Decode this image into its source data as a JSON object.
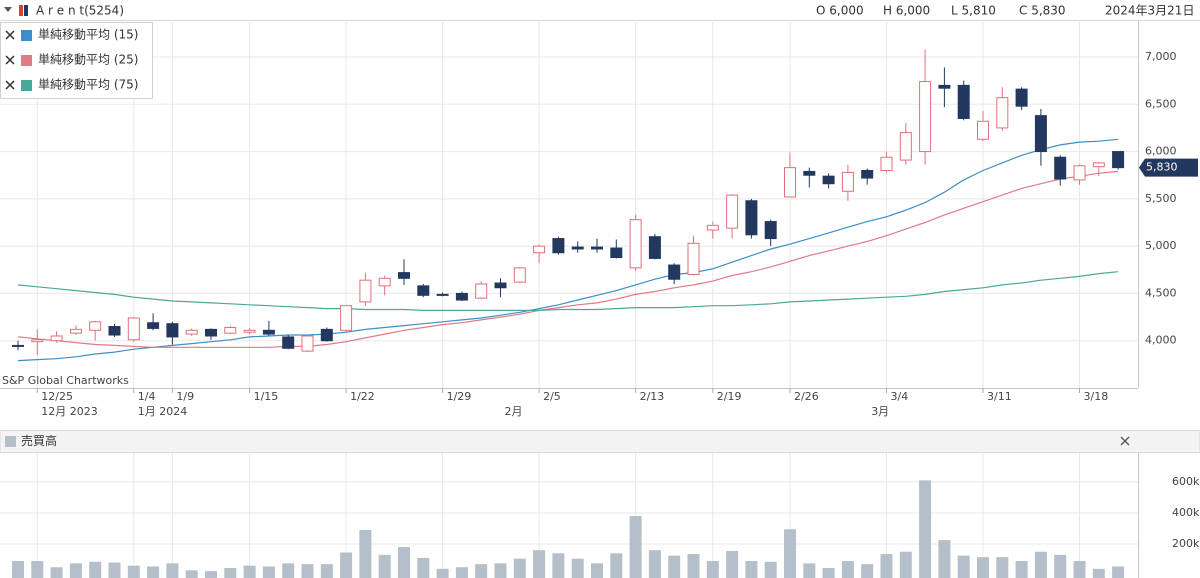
{
  "chart_data": [
    {
      "type": "candlestick",
      "title": "A r e n t(5254)",
      "ohlc_labels": [
        "O 6,000",
        "H 6,000",
        "L 5,810",
        "C 5,830"
      ],
      "date": "2024年3月21日",
      "credit": "S&P Global Chartworks",
      "last_label": "5,830",
      "categories": [
        null,
        "12/25",
        null,
        null,
        null,
        null,
        "1/4",
        null,
        "1/9",
        null,
        null,
        null,
        "1/15",
        null,
        null,
        null,
        null,
        "1/22",
        null,
        null,
        null,
        null,
        "1/29",
        null,
        null,
        null,
        null,
        "2/5",
        null,
        null,
        null,
        null,
        "2/13",
        null,
        null,
        null,
        "2/19",
        null,
        null,
        null,
        "2/26",
        null,
        null,
        null,
        null,
        "3/4",
        null,
        null,
        null,
        null,
        "3/11",
        null,
        null,
        null,
        null,
        "3/18",
        null,
        null
      ],
      "month_labels": [
        {
          "index": 1,
          "label": "12月 2023"
        },
        {
          "index": 6,
          "label": "1月 2024"
        },
        {
          "index": 25,
          "label": "2月"
        },
        {
          "index": 44,
          "label": "3月"
        }
      ],
      "open": [
        3950,
        3990,
        4000,
        4080,
        4110,
        4150,
        4010,
        4190,
        4180,
        4070,
        4120,
        4080,
        4090,
        4110,
        4040,
        3890,
        4120,
        4110,
        4410,
        4580,
        4720,
        4580,
        4490,
        4500,
        4450,
        4610,
        4620,
        4930,
        5080,
        4990,
        4990,
        4980,
        4770,
        5100,
        4800,
        4700,
        5170,
        5190,
        5480,
        5260,
        5520,
        5790,
        5740,
        5580,
        5800,
        5800,
        5910,
        6000,
        6700,
        6700,
        6130,
        6250,
        6660,
        6380,
        5940,
        5700,
        5840,
        6000
      ],
      "high": [
        4000,
        4120,
        4100,
        4160,
        4210,
        4180,
        4250,
        4290,
        4200,
        4130,
        4130,
        4160,
        4130,
        4210,
        4060,
        4060,
        4140,
        4380,
        4720,
        4690,
        4860,
        4600,
        4510,
        4520,
        4630,
        4660,
        4780,
        5020,
        5100,
        5050,
        5080,
        5070,
        5330,
        5130,
        4820,
        5110,
        5260,
        5550,
        5500,
        5280,
        5990,
        5830,
        5770,
        5860,
        5820,
        6000,
        6300,
        7080,
        6890,
        6750,
        6430,
        6680,
        6680,
        6450,
        5960,
        5860,
        5890,
        6000
      ],
      "low": [
        3900,
        3850,
        3980,
        4060,
        4000,
        4040,
        3990,
        4110,
        3960,
        4050,
        4010,
        4070,
        4070,
        4050,
        3910,
        3880,
        3990,
        4100,
        4370,
        4480,
        4590,
        4460,
        4470,
        4420,
        4440,
        4460,
        4610,
        4820,
        4910,
        4930,
        4930,
        4870,
        4740,
        4860,
        4600,
        4690,
        5080,
        5080,
        5080,
        5000,
        5520,
        5620,
        5610,
        5480,
        5650,
        5780,
        5860,
        5860,
        6470,
        6330,
        6110,
        6220,
        6440,
        5850,
        5640,
        5650,
        5740,
        5810
      ],
      "close": [
        3940,
        4010,
        4050,
        4120,
        4200,
        4060,
        4240,
        4130,
        4040,
        4110,
        4050,
        4140,
        4110,
        4070,
        3920,
        4050,
        4000,
        4370,
        4640,
        4660,
        4660,
        4480,
        4480,
        4430,
        4600,
        4560,
        4770,
        5000,
        4930,
        4970,
        4970,
        4880,
        5280,
        4870,
        4650,
        5030,
        5220,
        5540,
        5120,
        5080,
        5830,
        5750,
        5660,
        5780,
        5720,
        5940,
        6200,
        6740,
        6670,
        6350,
        6320,
        6570,
        6480,
        6000,
        5710,
        5850,
        5880,
        5830
      ],
      "up_color": "#e0707a",
      "down_color": "#22385e",
      "series": [
        {
          "name": "単純移動平均 (15)",
          "color": "#3a8fc7",
          "values": [
            3790,
            3800,
            3810,
            3830,
            3860,
            3880,
            3910,
            3930,
            3950,
            3970,
            3990,
            4010,
            4040,
            4050,
            4060,
            4060,
            4070,
            4090,
            4120,
            4140,
            4160,
            4180,
            4200,
            4220,
            4240,
            4270,
            4300,
            4340,
            4380,
            4430,
            4480,
            4530,
            4590,
            4650,
            4700,
            4720,
            4760,
            4830,
            4900,
            4970,
            5020,
            5080,
            5140,
            5200,
            5260,
            5310,
            5380,
            5460,
            5570,
            5700,
            5800,
            5880,
            5960,
            6020,
            6070,
            6100,
            6110,
            6130
          ]
        },
        {
          "name": "単純移動平均 (25)",
          "color": "#e07a85",
          "values": [
            4040,
            4020,
            4000,
            3980,
            3960,
            3950,
            3940,
            3930,
            3930,
            3930,
            3930,
            3930,
            3930,
            3930,
            3940,
            3940,
            3960,
            3990,
            4030,
            4070,
            4110,
            4140,
            4170,
            4190,
            4220,
            4250,
            4280,
            4320,
            4350,
            4380,
            4400,
            4440,
            4490,
            4520,
            4560,
            4590,
            4630,
            4690,
            4730,
            4780,
            4840,
            4900,
            4950,
            5000,
            5050,
            5110,
            5180,
            5250,
            5330,
            5400,
            5470,
            5540,
            5610,
            5660,
            5710,
            5740,
            5770,
            5790
          ]
        },
        {
          "name": "単純移動平均 (75)",
          "color": "#4aa89b",
          "values": [
            4590,
            4570,
            4550,
            4530,
            4510,
            4490,
            4460,
            4440,
            4420,
            4410,
            4400,
            4390,
            4380,
            4370,
            4360,
            4350,
            4340,
            4340,
            4330,
            4330,
            4330,
            4320,
            4320,
            4320,
            4320,
            4320,
            4320,
            4320,
            4330,
            4330,
            4330,
            4340,
            4350,
            4350,
            4350,
            4360,
            4370,
            4370,
            4380,
            4390,
            4410,
            4420,
            4430,
            4440,
            4450,
            4460,
            4470,
            4490,
            4520,
            4540,
            4560,
            4590,
            4610,
            4640,
            4660,
            4680,
            4710,
            4730
          ]
        }
      ],
      "legend": "top-left",
      "ylim": [
        3500,
        7370
      ],
      "yticks": [
        {
          "value": 4000,
          "label": "4,000"
        },
        {
          "value": 4500,
          "label": "4,500"
        },
        {
          "value": 5000,
          "label": "5,000"
        },
        {
          "value": 5500,
          "label": "5,500"
        },
        {
          "value": 6000,
          "label": "6,000"
        },
        {
          "value": 6500,
          "label": "6,500"
        },
        {
          "value": 7000,
          "label": "7,000"
        }
      ],
      "grid": true
    },
    {
      "type": "bar",
      "title": "売買高",
      "color": "#b4bfca",
      "values": [
        90000,
        90000,
        50000,
        75000,
        85000,
        80000,
        60000,
        55000,
        75000,
        30000,
        25000,
        45000,
        60000,
        55000,
        75000,
        70000,
        70000,
        145000,
        290000,
        130000,
        180000,
        110000,
        40000,
        50000,
        70000,
        75000,
        105000,
        160000,
        140000,
        105000,
        75000,
        140000,
        380000,
        160000,
        125000,
        135000,
        90000,
        155000,
        90000,
        85000,
        295000,
        75000,
        45000,
        90000,
        70000,
        135000,
        150000,
        610000,
        225000,
        125000,
        115000,
        115000,
        90000,
        150000,
        130000,
        90000,
        40000,
        55000
      ],
      "ylim": [
        0,
        780000
      ],
      "yticks": [
        {
          "value": 200000,
          "label": "200k"
        },
        {
          "value": 400000,
          "label": "400k"
        },
        {
          "value": 600000,
          "label": "600k"
        }
      ],
      "grid": true
    }
  ]
}
